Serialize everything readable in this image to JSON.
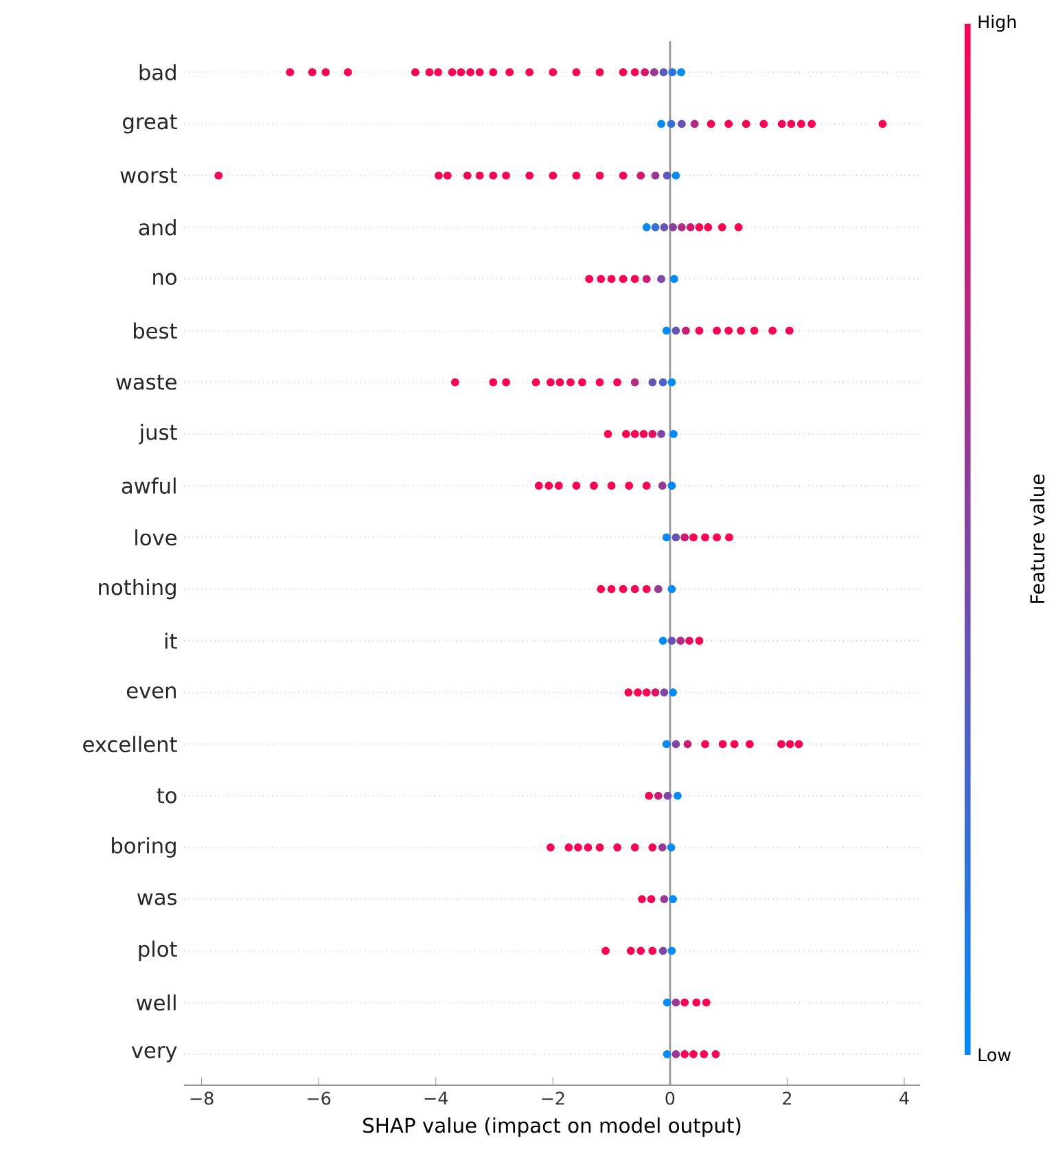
{
  "chart_data": {
    "type": "scatter",
    "orientation": "horizontal",
    "xlabel": "SHAP value (impact on model output)",
    "clabel": "Feature value",
    "categories": [
      "bad",
      "great",
      "worst",
      "and",
      "no",
      "best",
      "waste",
      "just",
      "awful",
      "love",
      "nothing",
      "it",
      "even",
      "excellent",
      "to",
      "boring",
      "was",
      "plot",
      "well",
      "very"
    ],
    "series": [
      {
        "x": [
          "bad",
          "bad",
          "bad",
          "bad",
          "bad",
          "bad",
          "bad",
          "bad",
          "bad",
          "bad",
          "bad",
          "bad",
          "bad",
          "bad",
          "bad",
          "bad",
          "bad",
          "bad",
          "bad",
          "bad",
          "bad",
          "bad",
          "bad",
          "bad"
        ],
        "values": [
          -6.49,
          -6.11,
          -5.88,
          -5.5,
          -4.35,
          -4.11,
          -3.96,
          -3.72,
          -3.57,
          -3.41,
          -3.25,
          -3.02,
          -2.74,
          -2.4,
          -2.0,
          -1.6,
          -1.2,
          -0.8,
          -0.6,
          -0.43,
          -0.27,
          -0.11,
          0.04,
          0.19
        ],
        "colors": [
          "#ff0052",
          "#ff0052",
          "#ff0052",
          "#ff0052",
          "#ff0052",
          "#ff0052",
          "#ff0052",
          "#ff0052",
          "#ff0052",
          "#ff0052",
          "#ff0052",
          "#ff0052",
          "#ff0052",
          "#ff0052",
          "#ff0052",
          "#ff0052",
          "#ff0052",
          "#ff0052",
          "#ff0052",
          "#d9156b",
          "#993896",
          "#595ac0",
          "#2676e2",
          "#008bfb"
        ]
      },
      {
        "x": [
          "great",
          "great",
          "great",
          "great",
          "great",
          "great",
          "great",
          "great",
          "great",
          "great",
          "great",
          "great",
          "great"
        ],
        "values": [
          -0.15,
          0.02,
          0.2,
          0.42,
          0.7,
          1.0,
          1.3,
          1.6,
          1.91,
          2.07,
          2.24,
          2.42,
          3.63
        ],
        "colors": [
          "#008bfb",
          "#336fd9",
          "#6653b7",
          "#b32a85",
          "#ff0052",
          "#ff0052",
          "#ff0052",
          "#ff0052",
          "#ff0052",
          "#ff0052",
          "#ff0052",
          "#ff0052",
          "#ff0052"
        ]
      },
      {
        "x": [
          "worst",
          "worst",
          "worst",
          "worst",
          "worst",
          "worst",
          "worst",
          "worst",
          "worst",
          "worst",
          "worst",
          "worst",
          "worst",
          "worst",
          "worst",
          "worst"
        ],
        "values": [
          -7.71,
          -3.95,
          -3.8,
          -3.46,
          -3.25,
          -3.02,
          -2.8,
          -2.4,
          -2.0,
          -1.6,
          -1.2,
          -0.8,
          -0.5,
          -0.25,
          -0.05,
          0.1
        ],
        "colors": [
          "#ff0052",
          "#ff0052",
          "#ff0052",
          "#ff0052",
          "#ff0052",
          "#ff0052",
          "#ff0052",
          "#ff0052",
          "#ff0052",
          "#ff0052",
          "#ff0052",
          "#ff0052",
          "#d9156b",
          "#993896",
          "#595ac0",
          "#008bfb"
        ]
      },
      {
        "x": [
          "and",
          "and",
          "and",
          "and",
          "and",
          "and",
          "and",
          "and",
          "and",
          "and"
        ],
        "values": [
          -0.4,
          -0.25,
          -0.1,
          0.05,
          0.2,
          0.35,
          0.5,
          0.65,
          0.89,
          1.17
        ],
        "colors": [
          "#008bfb",
          "#336fd9",
          "#6653b7",
          "#8c3f9e",
          "#b32a85",
          "#d9156b",
          "#ff0052",
          "#ff0052",
          "#ff0052",
          "#ff0052"
        ]
      },
      {
        "x": [
          "no",
          "no",
          "no",
          "no",
          "no",
          "no",
          "no",
          "no"
        ],
        "values": [
          -1.38,
          -1.18,
          -1.0,
          -0.8,
          -0.6,
          -0.4,
          -0.15,
          0.07
        ],
        "colors": [
          "#ff0052",
          "#ff0052",
          "#ff0052",
          "#ff0052",
          "#ff0052",
          "#cc1c74",
          "#8046a6",
          "#008bfb"
        ]
      },
      {
        "x": [
          "best",
          "best",
          "best",
          "best",
          "best",
          "best",
          "best",
          "best",
          "best",
          "best"
        ],
        "values": [
          -0.06,
          0.1,
          0.27,
          0.5,
          0.8,
          1.0,
          1.21,
          1.44,
          1.75,
          2.04
        ],
        "colors": [
          "#008bfb",
          "#6653b7",
          "#cc1c74",
          "#ff0052",
          "#ff0052",
          "#ff0052",
          "#ff0052",
          "#ff0052",
          "#ff0052",
          "#ff0052"
        ]
      },
      {
        "x": [
          "waste",
          "waste",
          "waste",
          "waste",
          "waste",
          "waste",
          "waste",
          "waste",
          "waste",
          "waste",
          "waste",
          "waste",
          "waste",
          "waste"
        ],
        "values": [
          -3.67,
          -3.02,
          -2.8,
          -2.29,
          -2.04,
          -1.88,
          -1.7,
          -1.5,
          -1.2,
          -0.9,
          -0.6,
          -0.3,
          -0.12,
          0.03
        ],
        "colors": [
          "#ff0052",
          "#ff0052",
          "#ff0052",
          "#ff0052",
          "#ff0052",
          "#ff0052",
          "#ff0052",
          "#ff0052",
          "#ff0052",
          "#ff0052",
          "#b32a85",
          "#6653b7",
          "#4d61c8",
          "#008bfb"
        ]
      },
      {
        "x": [
          "just",
          "just",
          "just",
          "just",
          "just",
          "just",
          "just"
        ],
        "values": [
          -1.06,
          -0.75,
          -0.6,
          -0.45,
          -0.3,
          -0.15,
          0.06
        ],
        "colors": [
          "#ff0052",
          "#ff0052",
          "#ff0052",
          "#ff0052",
          "#e60e63",
          "#8046a6",
          "#008bfb"
        ]
      },
      {
        "x": [
          "awful",
          "awful",
          "awful",
          "awful",
          "awful",
          "awful",
          "awful",
          "awful",
          "awful",
          "awful"
        ],
        "values": [
          -2.24,
          -2.07,
          -1.9,
          -1.6,
          -1.3,
          -1.0,
          -0.7,
          -0.4,
          -0.13,
          0.03
        ],
        "colors": [
          "#ff0052",
          "#ff0052",
          "#ff0052",
          "#ff0052",
          "#ff0052",
          "#ff0052",
          "#ff0052",
          "#ff0052",
          "#993896",
          "#008bfb"
        ]
      },
      {
        "x": [
          "love",
          "love",
          "love",
          "love",
          "love",
          "love",
          "love"
        ],
        "values": [
          -0.06,
          0.1,
          0.25,
          0.4,
          0.6,
          0.8,
          1.01
        ],
        "colors": [
          "#008bfb",
          "#6653b7",
          "#cc1c74",
          "#ff0052",
          "#ff0052",
          "#ff0052",
          "#ff0052"
        ]
      },
      {
        "x": [
          "nothing",
          "nothing",
          "nothing",
          "nothing",
          "nothing",
          "nothing",
          "nothing"
        ],
        "values": [
          -1.18,
          -1.0,
          -0.8,
          -0.6,
          -0.4,
          -0.2,
          0.03
        ],
        "colors": [
          "#ff0052",
          "#ff0052",
          "#ff0052",
          "#ff0052",
          "#ff0052",
          "#993896",
          "#008bfb"
        ]
      },
      {
        "x": [
          "it",
          "it",
          "it",
          "it",
          "it"
        ],
        "values": [
          -0.12,
          0.03,
          0.18,
          0.33,
          0.5
        ],
        "colors": [
          "#008bfb",
          "#6653b7",
          "#b32a85",
          "#e60e63",
          "#ff0052"
        ]
      },
      {
        "x": [
          "even",
          "even",
          "even",
          "even",
          "even",
          "even"
        ],
        "values": [
          -0.71,
          -0.55,
          -0.4,
          -0.25,
          -0.1,
          0.05
        ],
        "colors": [
          "#ff0052",
          "#ff0052",
          "#ff0052",
          "#e60e63",
          "#8046a6",
          "#008bfb"
        ]
      },
      {
        "x": [
          "excellent",
          "excellent",
          "excellent",
          "excellent",
          "excellent",
          "excellent",
          "excellent",
          "excellent",
          "excellent",
          "excellent"
        ],
        "values": [
          -0.06,
          0.1,
          0.3,
          0.6,
          0.9,
          1.1,
          1.36,
          1.9,
          2.05,
          2.2
        ],
        "colors": [
          "#008bfb",
          "#8046a6",
          "#cc1c74",
          "#ff0052",
          "#ff0052",
          "#ff0052",
          "#ff0052",
          "#ff0052",
          "#ff0052",
          "#ff0052"
        ]
      },
      {
        "x": [
          "to",
          "to",
          "to",
          "to"
        ],
        "values": [
          -0.36,
          -0.2,
          -0.04,
          0.13
        ],
        "colors": [
          "#ff0052",
          "#cc1c74",
          "#8046a6",
          "#008bfb"
        ]
      },
      {
        "x": [
          "boring",
          "boring",
          "boring",
          "boring",
          "boring",
          "boring",
          "boring",
          "boring",
          "boring",
          "boring"
        ],
        "values": [
          -2.04,
          -1.73,
          -1.57,
          -1.4,
          -1.2,
          -0.9,
          -0.6,
          -0.3,
          -0.13,
          0.02
        ],
        "colors": [
          "#ff0052",
          "#ff0052",
          "#ff0052",
          "#ff0052",
          "#ff0052",
          "#ff0052",
          "#ff0052",
          "#ff0052",
          "#993896",
          "#008bfb"
        ]
      },
      {
        "x": [
          "was",
          "was",
          "was",
          "was"
        ],
        "values": [
          -0.48,
          -0.32,
          -0.1,
          0.05
        ],
        "colors": [
          "#ff0052",
          "#ff0052",
          "#993896",
          "#008bfb"
        ]
      },
      {
        "x": [
          "plot",
          "plot",
          "plot",
          "plot",
          "plot",
          "plot"
        ],
        "values": [
          -1.1,
          -0.67,
          -0.5,
          -0.3,
          -0.12,
          0.03
        ],
        "colors": [
          "#ff0052",
          "#ff0052",
          "#ff0052",
          "#ff0052",
          "#8046a6",
          "#008bfb"
        ]
      },
      {
        "x": [
          "well",
          "well",
          "well",
          "well",
          "well"
        ],
        "values": [
          -0.05,
          0.1,
          0.25,
          0.45,
          0.62
        ],
        "colors": [
          "#008bfb",
          "#993896",
          "#ff0052",
          "#ff0052",
          "#ff0052"
        ]
      },
      {
        "x": [
          "very",
          "very",
          "very",
          "very",
          "very",
          "very"
        ],
        "values": [
          -0.05,
          0.1,
          0.25,
          0.4,
          0.58,
          0.78
        ],
        "colors": [
          "#008bfb",
          "#993896",
          "#ff0052",
          "#ff0052",
          "#ff0052",
          "#ff0052"
        ]
      }
    ],
    "xlim": [
      -8.3,
      4.27
    ],
    "xticks": [
      {
        "value": -8,
        "label": "−8"
      },
      {
        "value": -6,
        "label": "−6"
      },
      {
        "value": -4,
        "label": "−4"
      },
      {
        "value": -2,
        "label": "−2"
      },
      0,
      2,
      4
    ],
    "clim": [
      0,
      1
    ],
    "cticks": [
      {
        "value": 0,
        "label": "Low"
      },
      {
        "value": 1,
        "label": "High"
      }
    ],
    "ref_lines": [
      {
        "axis": "x",
        "value": 0,
        "color": "#999999"
      }
    ],
    "grid": "y"
  }
}
